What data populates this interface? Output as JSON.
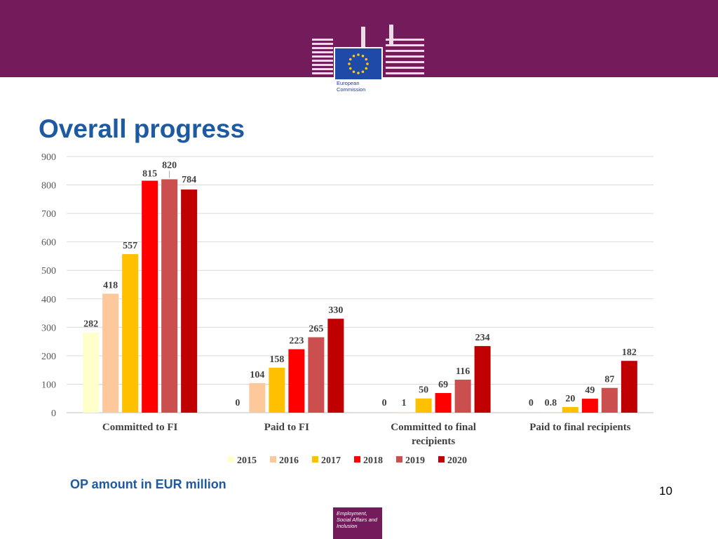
{
  "header": {
    "logo_text": "European Commission"
  },
  "page_title": "Overall progress",
  "subtitle": "OP amount in EUR million",
  "page_number": "10",
  "footer_logo_text": "Employment, Social Affairs and Inclusion",
  "colors": {
    "banner": "#741b5c",
    "title": "#1e5aa0",
    "flag": "#1f4aa8",
    "stars": "#ffcc00"
  },
  "chart_data": {
    "type": "bar",
    "title": "",
    "xlabel": "",
    "ylabel": "",
    "ylim": [
      0,
      900
    ],
    "yticks": [
      0,
      100,
      200,
      300,
      400,
      500,
      600,
      700,
      800,
      900
    ],
    "grid": true,
    "legend_position": "bottom-center",
    "categories": [
      [
        "Committed to FI"
      ],
      [
        "Paid to FI"
      ],
      [
        "Committed to final",
        "recipients"
      ],
      [
        "Paid to final recipients"
      ]
    ],
    "series": [
      {
        "name": "2015",
        "color": "#ffffcc",
        "values": [
          282,
          0,
          0,
          0
        ],
        "labels": [
          "282",
          "0",
          "0",
          "0"
        ]
      },
      {
        "name": "2016",
        "color": "#fdc89a",
        "values": [
          418,
          104,
          1,
          0.8
        ],
        "labels": [
          "418",
          "104",
          "1",
          "0.8"
        ]
      },
      {
        "name": "2017",
        "color": "#ffc000",
        "values": [
          557,
          158,
          50,
          20
        ],
        "labels": [
          "557",
          "158",
          "50",
          "20"
        ]
      },
      {
        "name": "2018",
        "color": "#ff0000",
        "values": [
          815,
          223,
          69,
          49
        ],
        "labels": [
          "815",
          "223",
          "69",
          "49"
        ]
      },
      {
        "name": "2019",
        "color": "#cc4f50",
        "values": [
          820,
          265,
          116,
          87
        ],
        "labels": [
          "820",
          "265",
          "116",
          "87"
        ]
      },
      {
        "name": "2020",
        "color": "#c00000",
        "values": [
          784,
          330,
          234,
          182
        ],
        "labels": [
          "784",
          "330",
          "234",
          "182"
        ]
      }
    ]
  }
}
